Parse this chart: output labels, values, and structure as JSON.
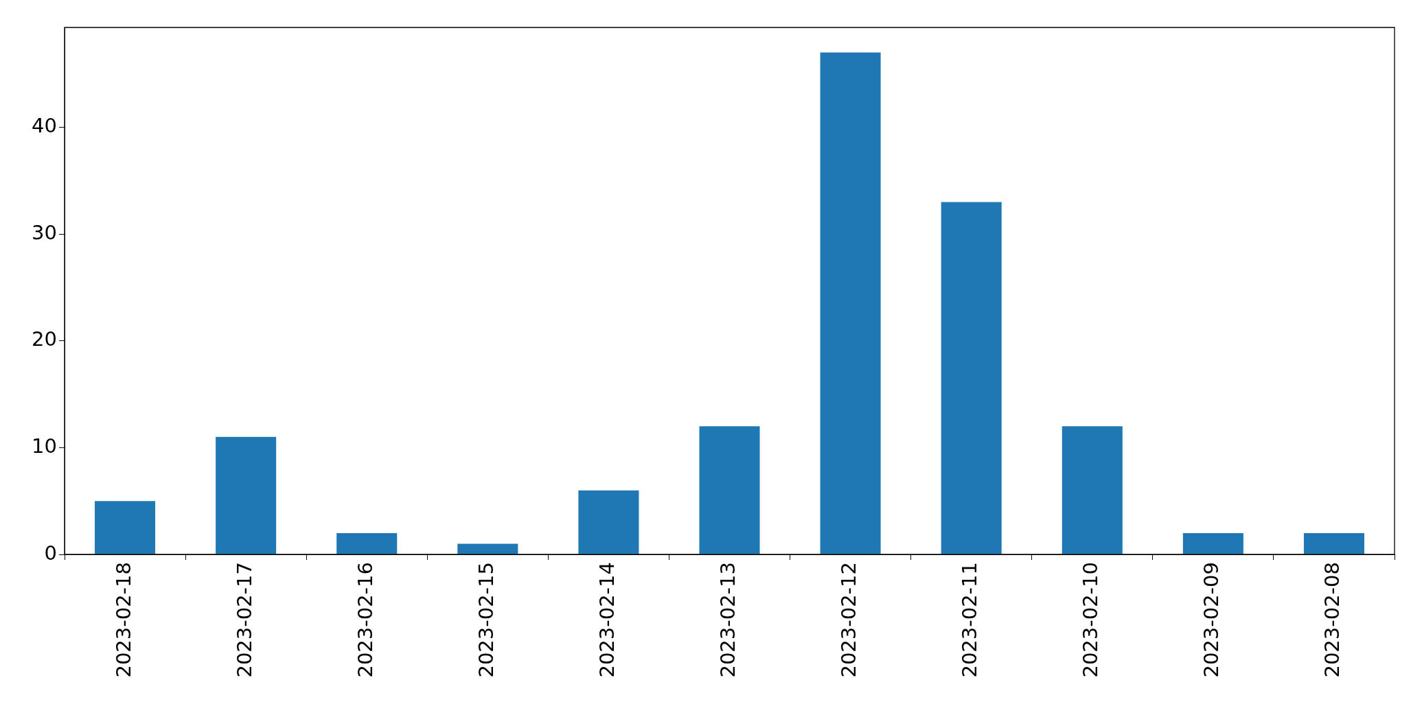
{
  "chart_data": {
    "type": "bar",
    "categories": [
      "2023-02-18",
      "2023-02-17",
      "2023-02-16",
      "2023-02-15",
      "2023-02-14",
      "2023-02-13",
      "2023-02-12",
      "2023-02-11",
      "2023-02-10",
      "2023-02-09",
      "2023-02-08"
    ],
    "values": [
      5,
      11,
      2,
      1,
      6,
      12,
      47,
      33,
      12,
      2,
      2
    ],
    "color": "#1f77b4",
    "ylim": [
      0,
      49.35
    ],
    "yticks": [
      0,
      10,
      20,
      30,
      40
    ],
    "grid": false,
    "legend": false
  }
}
